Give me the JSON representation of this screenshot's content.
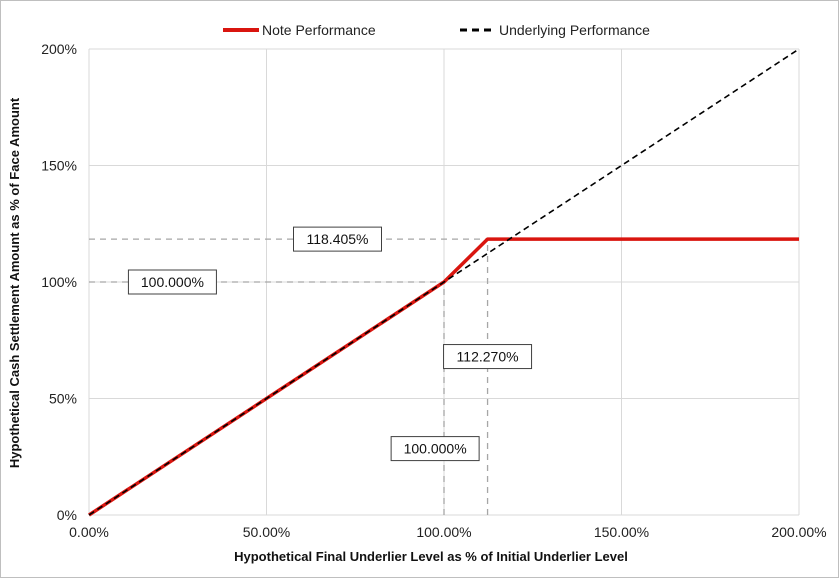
{
  "chart_data": {
    "type": "line",
    "xlabel": "Hypothetical Final Underlier Level as % of Initial Underlier Level",
    "ylabel": "Hypothetical Cash Settlement Amount as % of Face Amount",
    "xlim": [
      0,
      200
    ],
    "ylim": [
      0,
      200
    ],
    "x_ticks": [
      0,
      50,
      100,
      150,
      200
    ],
    "x_tick_labels": [
      "0.00%",
      "50.00%",
      "100.00%",
      "150.00%",
      "200.00%"
    ],
    "y_ticks": [
      0,
      50,
      100,
      150,
      200
    ],
    "y_tick_labels": [
      "0%",
      "50%",
      "100%",
      "150%",
      "200%"
    ],
    "grid": true,
    "legend_position": "top",
    "series": [
      {
        "name": "Note Performance",
        "color": "#d9150f",
        "style": "solid",
        "x": [
          0,
          100,
          112.27,
          200
        ],
        "y": [
          0,
          100,
          118.405,
          118.405
        ]
      },
      {
        "name": "Underlying Performance",
        "color": "#000000",
        "style": "dashed",
        "x": [
          0,
          200
        ],
        "y": [
          0,
          200
        ]
      }
    ],
    "reference_lines": [
      {
        "orientation": "horizontal",
        "y": 118.405,
        "x_from": 0,
        "x_to": 112.27
      },
      {
        "orientation": "horizontal",
        "y": 100,
        "x_from": 0,
        "x_to": 100
      },
      {
        "orientation": "vertical",
        "x": 100,
        "y_from": 0,
        "y_to": 100
      },
      {
        "orientation": "vertical",
        "x": 112.27,
        "y_from": 0,
        "y_to": 118.405
      }
    ],
    "annotations": [
      {
        "text": "118.405%",
        "x": 70,
        "y": 118.405
      },
      {
        "text": "100.000%",
        "x": 23.5,
        "y": 100
      },
      {
        "text": "112.270%",
        "x": 112.27,
        "y": 68
      },
      {
        "text": "100.000%",
        "x": 97.5,
        "y": 28.5
      }
    ]
  }
}
